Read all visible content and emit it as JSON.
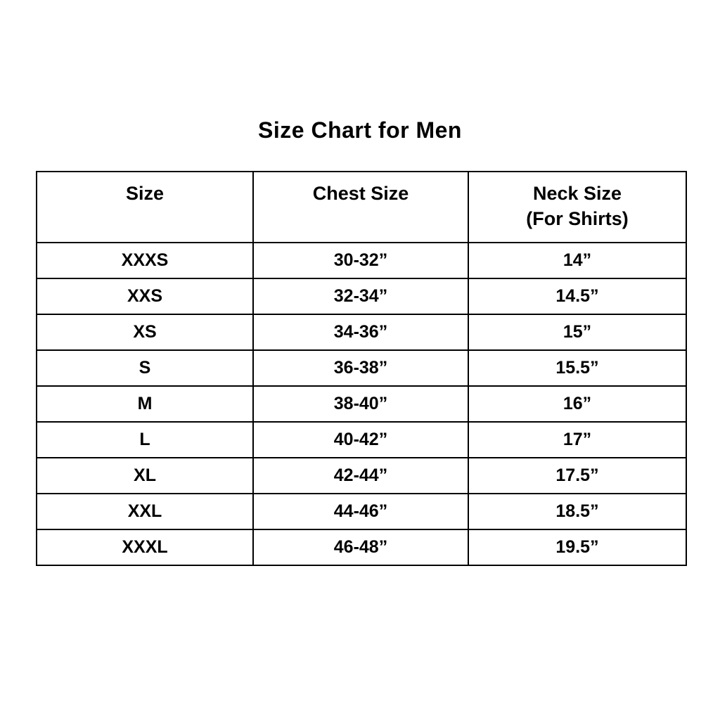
{
  "title": "Size Chart for Men",
  "colors": {
    "background": "#ffffff",
    "text": "#000000",
    "border": "#000000"
  },
  "chart_data": {
    "type": "table",
    "title": "Size Chart for Men",
    "columns": [
      {
        "label": "Size",
        "sublabel": ""
      },
      {
        "label": "Chest Size",
        "sublabel": ""
      },
      {
        "label": "Neck Size",
        "sublabel": "(For Shirts)"
      }
    ],
    "rows": [
      {
        "size": "XXXS",
        "chest": "30-32”",
        "neck": "14”"
      },
      {
        "size": "XXS",
        "chest": "32-34”",
        "neck": "14.5”"
      },
      {
        "size": "XS",
        "chest": "34-36”",
        "neck": "15”"
      },
      {
        "size": "S",
        "chest": "36-38”",
        "neck": "15.5”"
      },
      {
        "size": "M",
        "chest": "38-40”",
        "neck": "16”"
      },
      {
        "size": "L",
        "chest": "40-42”",
        "neck": "17”"
      },
      {
        "size": "XL",
        "chest": "42-44”",
        "neck": "17.5”"
      },
      {
        "size": "XXL",
        "chest": "44-46”",
        "neck": "18.5”"
      },
      {
        "size": "XXXL",
        "chest": "46-48”",
        "neck": "19.5”"
      }
    ]
  }
}
